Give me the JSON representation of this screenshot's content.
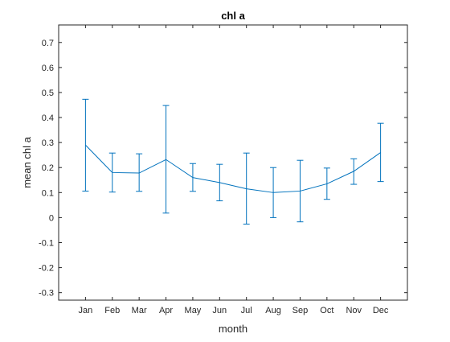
{
  "chart_data": {
    "type": "line",
    "title": "chl a",
    "xlabel": "month",
    "ylabel": "mean chl a",
    "categories": [
      "Jan",
      "Feb",
      "Mar",
      "Apr",
      "May",
      "Jun",
      "Jul",
      "Aug",
      "Sep",
      "Oct",
      "Nov",
      "Dec"
    ],
    "ylim": [
      -0.33,
      0.77
    ],
    "yticks": [
      -0.3,
      -0.2,
      -0.1,
      0,
      0.1,
      0.2,
      0.3,
      0.4,
      0.5,
      0.6,
      0.7
    ],
    "ytick_labels": [
      "-0.3",
      "-0.2",
      "-0.1",
      "0",
      "0.1",
      "0.2",
      "0.3",
      "0.4",
      "0.5",
      "0.6",
      "0.7"
    ],
    "grid": false,
    "series": [
      {
        "values": [
          0.29,
          0.18,
          0.178,
          0.232,
          0.16,
          0.14,
          0.115,
          0.1,
          0.106,
          0.135,
          0.185,
          0.26
        ],
        "error_upper": [
          0.473,
          0.258,
          0.255,
          0.448,
          0.216,
          0.213,
          0.258,
          0.2,
          0.229,
          0.198,
          0.235,
          0.377
        ],
        "error_lower": [
          0.106,
          0.102,
          0.105,
          0.018,
          0.105,
          0.067,
          -0.026,
          0,
          -0.017,
          0.073,
          0.133,
          0.144
        ],
        "color": "#0072BD"
      }
    ]
  }
}
